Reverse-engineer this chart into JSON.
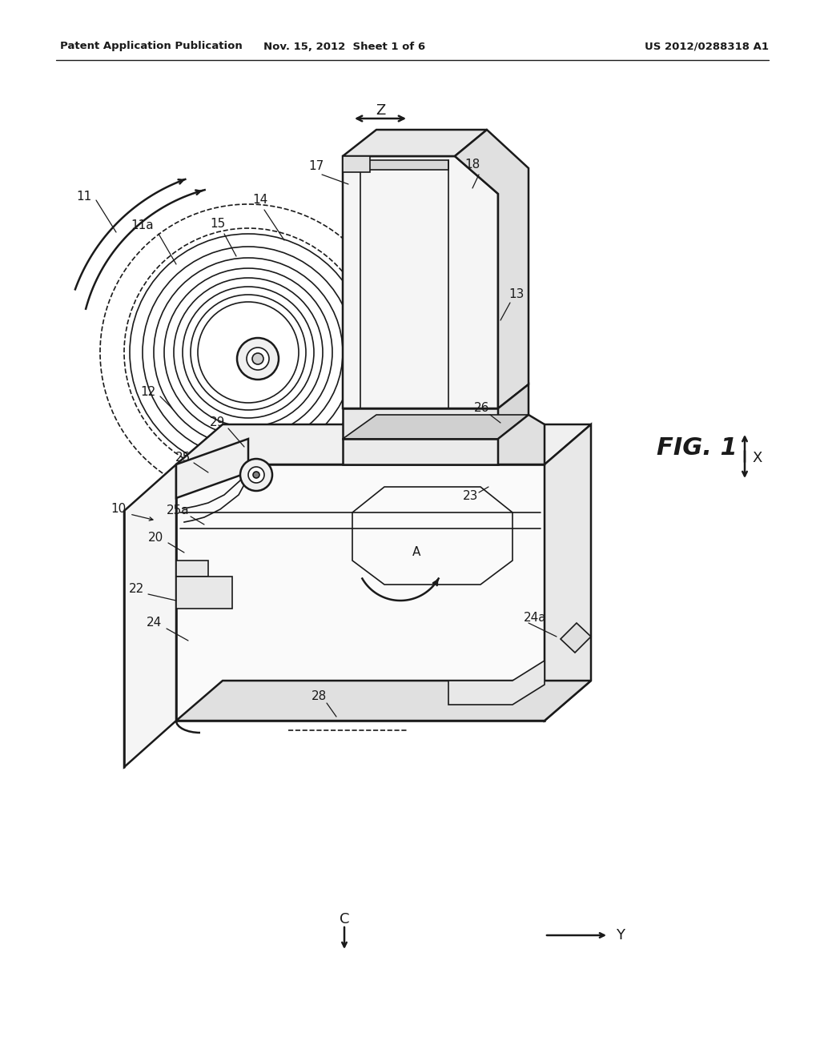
{
  "bg_color": "#ffffff",
  "line_color": "#1a1a1a",
  "header_left": "Patent Application Publication",
  "header_mid": "Nov. 15, 2012  Sheet 1 of 6",
  "header_right": "US 2012/0288318 A1",
  "fig_label": "FIG. 1",
  "figsize": [
    10.24,
    13.2
  ],
  "dpi": 100
}
